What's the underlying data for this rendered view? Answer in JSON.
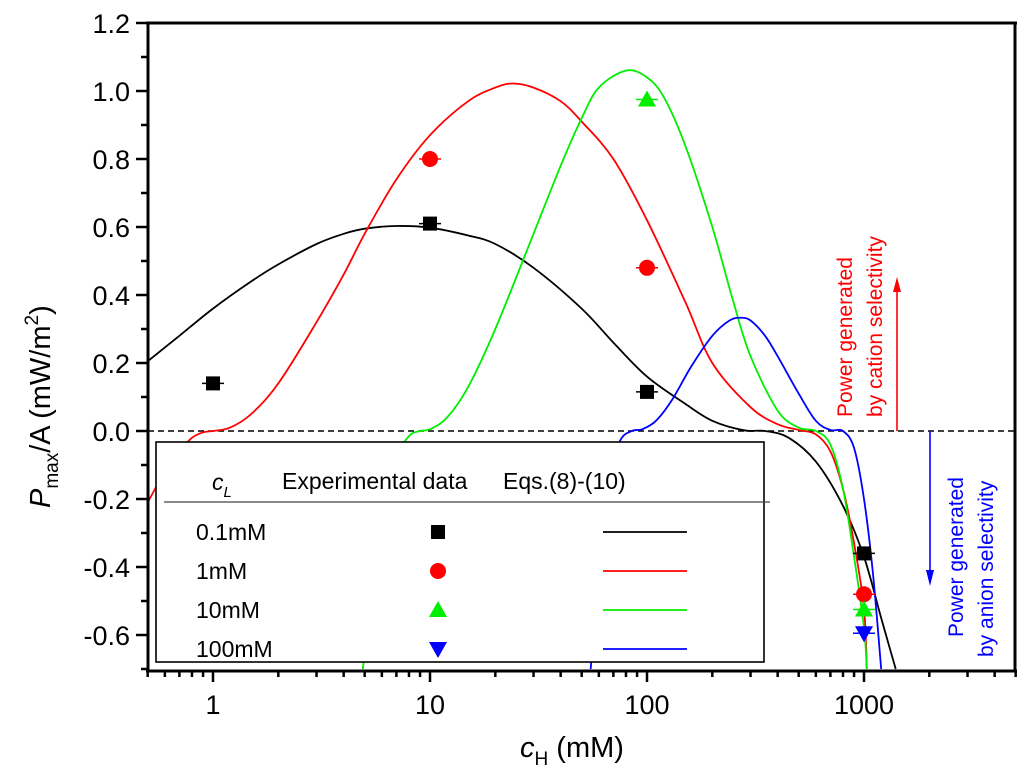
{
  "chart_data": {
    "type": "scatter",
    "title": "",
    "xlabel": "c_H (mM)",
    "xlabel_parts": {
      "main": "c",
      "sub": "H",
      "unit": " (mM)"
    },
    "ylabel": "P_max/A (mW/m^2)",
    "ylabel_parts": {
      "main": "P",
      "sub": "max",
      "mid": "/A (mW/m",
      "sup": "2",
      "end": ")"
    },
    "xscale": "log",
    "xlim": [
      0.5,
      5000
    ],
    "ylim": [
      -0.7,
      1.2
    ],
    "x_ticks": [
      1,
      10,
      100,
      1000
    ],
    "x_tick_labels": [
      "1",
      "10",
      "100",
      "1000"
    ],
    "y_ticks": [
      1.2,
      1.0,
      0.8,
      0.6,
      0.4,
      0.2,
      0.0,
      -0.2,
      -0.4,
      -0.6
    ],
    "y_tick_labels": [
      "1.2",
      "1.0",
      "0.8",
      "0.6",
      "0.4",
      "0.2",
      "0.0",
      "-0.2",
      "-0.4",
      "-0.6"
    ],
    "zero_line": "dashed",
    "grid": false,
    "legend": {
      "placement": "bottom-left",
      "headers": {
        "col1_main": "c",
        "col1_sub": "L",
        "col2": "Experimental data",
        "col3": "Eqs.(8)-(10)"
      },
      "entries": [
        "0.1mM",
        "1mM",
        "10mM",
        "100mM"
      ]
    },
    "series": [
      {
        "name": "0.1mM",
        "color": "#000000",
        "marker": "square",
        "points": [
          {
            "x": 1,
            "y": 0.14
          },
          {
            "x": 10,
            "y": 0.61
          },
          {
            "x": 100,
            "y": 0.115
          },
          {
            "x": 1000,
            "y": -0.36
          }
        ],
        "model_curve": [
          [
            0.5,
            0.205
          ],
          [
            0.7,
            0.28
          ],
          [
            1,
            0.36
          ],
          [
            1.5,
            0.44
          ],
          [
            2,
            0.49
          ],
          [
            3,
            0.55
          ],
          [
            4,
            0.58
          ],
          [
            5,
            0.595
          ],
          [
            7,
            0.603
          ],
          [
            10,
            0.598
          ],
          [
            15,
            0.575
          ],
          [
            20,
            0.55
          ],
          [
            30,
            0.48
          ],
          [
            50,
            0.36
          ],
          [
            70,
            0.26
          ],
          [
            100,
            0.16
          ],
          [
            150,
            0.08
          ],
          [
            200,
            0.03
          ],
          [
            280,
            0.002
          ],
          [
            350,
            0.0
          ],
          [
            450,
            -0.02
          ],
          [
            600,
            -0.09
          ],
          [
            800,
            -0.22
          ],
          [
            1000,
            -0.37
          ],
          [
            1200,
            -0.55
          ],
          [
            1400,
            -0.7
          ]
        ]
      },
      {
        "name": "1mM",
        "color": "#ff0000",
        "marker": "circle",
        "points": [
          {
            "x": 10,
            "y": 0.8
          },
          {
            "x": 100,
            "y": 0.48
          },
          {
            "x": 1000,
            "y": -0.48
          }
        ],
        "model_curve": [
          [
            0.5,
            -0.21
          ],
          [
            0.6,
            -0.12
          ],
          [
            0.7,
            -0.06
          ],
          [
            0.8,
            -0.02
          ],
          [
            0.9,
            -0.004
          ],
          [
            1,
            0.0
          ],
          [
            1.2,
            0.01
          ],
          [
            1.5,
            0.05
          ],
          [
            2,
            0.14
          ],
          [
            3,
            0.32
          ],
          [
            4,
            0.46
          ],
          [
            5,
            0.58
          ],
          [
            7,
            0.74
          ],
          [
            10,
            0.87
          ],
          [
            15,
            0.97
          ],
          [
            20,
            1.01
          ],
          [
            24,
            1.022
          ],
          [
            30,
            1.01
          ],
          [
            40,
            0.97
          ],
          [
            50,
            0.91
          ],
          [
            70,
            0.8
          ],
          [
            100,
            0.62
          ],
          [
            150,
            0.38
          ],
          [
            200,
            0.2
          ],
          [
            300,
            0.07
          ],
          [
            400,
            0.02
          ],
          [
            500,
            0.003
          ],
          [
            600,
            -0.01
          ],
          [
            700,
            -0.06
          ],
          [
            800,
            -0.17
          ],
          [
            900,
            -0.33
          ],
          [
            1000,
            -0.52
          ],
          [
            1030,
            -0.7
          ]
        ]
      },
      {
        "name": "10mM",
        "color": "#00ee00",
        "marker": "triangle-up",
        "points": [
          {
            "x": 100,
            "y": 0.975
          },
          {
            "x": 1000,
            "y": -0.525
          }
        ],
        "model_curve": [
          [
            4.9,
            -0.7
          ],
          [
            6,
            -0.25
          ],
          [
            7,
            -0.08
          ],
          [
            8,
            -0.015
          ],
          [
            9,
            0.0
          ],
          [
            10,
            0.005
          ],
          [
            12,
            0.04
          ],
          [
            15,
            0.13
          ],
          [
            20,
            0.3
          ],
          [
            30,
            0.58
          ],
          [
            40,
            0.78
          ],
          [
            50,
            0.92
          ],
          [
            60,
            1.01
          ],
          [
            80,
            1.06
          ],
          [
            100,
            1.04
          ],
          [
            120,
            0.98
          ],
          [
            150,
            0.84
          ],
          [
            200,
            0.6
          ],
          [
            250,
            0.38
          ],
          [
            300,
            0.22
          ],
          [
            400,
            0.06
          ],
          [
            500,
            0.01
          ],
          [
            600,
            0.0
          ],
          [
            700,
            -0.04
          ],
          [
            800,
            -0.17
          ],
          [
            900,
            -0.37
          ],
          [
            1000,
            -0.58
          ],
          [
            1030,
            -0.7
          ]
        ]
      },
      {
        "name": "100mM",
        "color": "#0000ff",
        "marker": "triangle-down",
        "points": [
          {
            "x": 1000,
            "y": -0.595
          }
        ],
        "model_curve": [
          [
            55,
            -0.7
          ],
          [
            65,
            -0.15
          ],
          [
            75,
            -0.03
          ],
          [
            85,
            0.0
          ],
          [
            95,
            0.005
          ],
          [
            110,
            0.03
          ],
          [
            130,
            0.09
          ],
          [
            160,
            0.19
          ],
          [
            200,
            0.28
          ],
          [
            240,
            0.325
          ],
          [
            270,
            0.333
          ],
          [
            300,
            0.325
          ],
          [
            350,
            0.28
          ],
          [
            400,
            0.22
          ],
          [
            500,
            0.11
          ],
          [
            600,
            0.03
          ],
          [
            700,
            0.003
          ],
          [
            800,
            0.0
          ],
          [
            900,
            -0.05
          ],
          [
            1000,
            -0.2
          ],
          [
            1100,
            -0.42
          ],
          [
            1200,
            -0.7
          ]
        ]
      }
    ],
    "annotations": [
      {
        "line1": "Power generated",
        "line2": "by cation selectivity",
        "color": "#ff0000",
        "arrow": "up"
      },
      {
        "line1": "Power generated",
        "line2": "by anion selectivity",
        "color": "#0000ff",
        "arrow": "down"
      }
    ]
  }
}
